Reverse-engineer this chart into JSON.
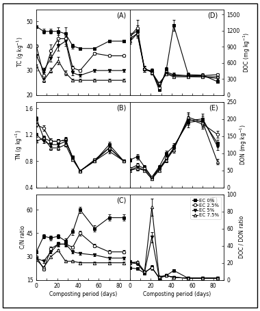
{
  "days": [
    0,
    7,
    14,
    21,
    28,
    35,
    42,
    56,
    70,
    84
  ],
  "TC": {
    "EC0": [
      48,
      46,
      46,
      46,
      45,
      40,
      39,
      39,
      42,
      42
    ],
    "EC2.5": [
      40,
      28,
      38,
      43,
      43,
      31,
      30,
      37,
      36,
      36
    ],
    "EC5": [
      36,
      30,
      35,
      40,
      42,
      29,
      28,
      30,
      30,
      30
    ],
    "EC7.5": [
      32,
      26,
      30,
      34,
      29,
      26,
      26,
      26,
      26,
      26
    ]
  },
  "TC_err": {
    "EC0": [
      0.5,
      1.0,
      1.0,
      1.5,
      2.5,
      1.0,
      0.5,
      0.5,
      0.5,
      0.5
    ],
    "EC2.5": [
      0.5,
      1.5,
      2.5,
      2.0,
      2.0,
      1.0,
      0.5,
      0.5,
      0.5,
      0.5
    ],
    "EC5": [
      0.5,
      1.0,
      1.5,
      2.0,
      2.0,
      1.0,
      0.5,
      0.5,
      0.5,
      0.5
    ],
    "EC7.5": [
      0.5,
      0.8,
      1.0,
      1.5,
      1.0,
      0.5,
      0.5,
      0.5,
      0.5,
      0.5
    ]
  },
  "TN": {
    "EC0": [
      1.45,
      1.15,
      1.1,
      1.1,
      1.12,
      0.85,
      0.65,
      0.8,
      1.05,
      0.8
    ],
    "EC2.5": [
      1.35,
      1.3,
      1.1,
      1.1,
      1.12,
      0.85,
      0.65,
      0.82,
      1.0,
      0.8
    ],
    "EC5": [
      1.2,
      1.1,
      1.05,
      1.05,
      1.1,
      0.85,
      0.65,
      0.8,
      0.95,
      0.8
    ],
    "EC7.5": [
      1.1,
      1.15,
      1.0,
      1.0,
      1.05,
      0.82,
      0.65,
      0.8,
      1.0,
      0.8
    ]
  },
  "TN_err": {
    "EC0": [
      0.03,
      0.04,
      0.04,
      0.03,
      0.05,
      0.03,
      0.02,
      0.02,
      0.04,
      0.02
    ],
    "EC2.5": [
      0.03,
      0.04,
      0.04,
      0.03,
      0.04,
      0.03,
      0.02,
      0.02,
      0.03,
      0.02
    ],
    "EC5": [
      0.03,
      0.03,
      0.03,
      0.03,
      0.04,
      0.03,
      0.02,
      0.02,
      0.03,
      0.02
    ],
    "EC7.5": [
      0.02,
      0.03,
      0.03,
      0.03,
      0.03,
      0.02,
      0.02,
      0.02,
      0.03,
      0.02
    ]
  },
  "CN_days": [
    0,
    7,
    14,
    21,
    28,
    35,
    42,
    56,
    70,
    84
  ],
  "CN": {
    "EC0": [
      33,
      43,
      42,
      43,
      40,
      46,
      60,
      48,
      55,
      55
    ],
    "EC2.5": [
      30,
      22,
      35,
      38,
      38,
      36,
      45,
      37,
      33,
      33
    ],
    "EC5": [
      29,
      27,
      33,
      38,
      38,
      33,
      32,
      31,
      29,
      29
    ],
    "EC7.5": [
      28,
      23,
      30,
      34,
      27,
      27,
      26,
      26,
      26,
      26
    ]
  },
  "CN_err": {
    "EC0": [
      1.0,
      1.5,
      1.5,
      1.5,
      1.5,
      2.0,
      2.0,
      2.0,
      2.0,
      2.0
    ],
    "EC2.5": [
      0.8,
      1.0,
      1.5,
      1.5,
      1.5,
      1.0,
      1.5,
      1.0,
      1.0,
      1.0
    ],
    "EC5": [
      0.8,
      1.0,
      1.0,
      1.0,
      1.0,
      1.0,
      1.0,
      0.8,
      0.8,
      0.8
    ],
    "EC7.5": [
      0.8,
      0.8,
      0.8,
      0.8,
      0.8,
      0.8,
      0.8,
      0.8,
      0.8,
      0.8
    ]
  },
  "DOC_days": [
    0,
    7,
    14,
    21,
    28,
    35,
    42,
    56,
    70,
    84
  ],
  "DOC": {
    "EC0": [
      1100,
      1200,
      480,
      450,
      100,
      480,
      1300,
      380,
      370,
      250
    ],
    "EC2.5": [
      1100,
      1250,
      480,
      430,
      140,
      430,
      380,
      360,
      360,
      380
    ],
    "EC5": [
      1050,
      1150,
      470,
      440,
      180,
      410,
      360,
      350,
      340,
      310
    ],
    "EC7.5": [
      1000,
      1150,
      500,
      420,
      220,
      390,
      340,
      340,
      340,
      340
    ]
  },
  "DOC_err": {
    "EC0": [
      60,
      100,
      50,
      50,
      20,
      40,
      100,
      40,
      40,
      30
    ],
    "EC2.5": [
      60,
      150,
      50,
      40,
      20,
      40,
      40,
      30,
      30,
      30
    ],
    "EC5": [
      50,
      80,
      40,
      40,
      20,
      30,
      30,
      30,
      30,
      25
    ],
    "EC7.5": [
      50,
      80,
      40,
      40,
      20,
      30,
      30,
      30,
      30,
      25
    ]
  },
  "DON_days": [
    0,
    7,
    14,
    21,
    28,
    35,
    42,
    56,
    70,
    84
  ],
  "DON": {
    "EC0": [
      80,
      90,
      60,
      30,
      60,
      100,
      120,
      190,
      195,
      130
    ],
    "EC2.5": [
      55,
      65,
      55,
      30,
      55,
      85,
      115,
      200,
      185,
      155
    ],
    "EC5": [
      50,
      60,
      50,
      25,
      55,
      80,
      115,
      195,
      200,
      120
    ],
    "EC7.5": [
      50,
      55,
      50,
      25,
      50,
      80,
      110,
      205,
      190,
      75
    ]
  },
  "DON_err": {
    "EC0": [
      5,
      8,
      5,
      4,
      6,
      8,
      10,
      15,
      15,
      10
    ],
    "EC2.5": [
      4,
      6,
      5,
      4,
      5,
      8,
      10,
      15,
      14,
      10
    ],
    "EC5": [
      4,
      5,
      4,
      3,
      5,
      7,
      9,
      14,
      15,
      10
    ],
    "EC7.5": [
      4,
      5,
      4,
      3,
      4,
      7,
      9,
      15,
      14,
      8
    ]
  },
  "DOCDON_days": [
    0,
    7,
    14,
    21,
    28,
    35,
    42,
    56,
    70,
    84
  ],
  "DOCDON": {
    "EC0": [
      14,
      13,
      8,
      15,
      2,
      5,
      11,
      2,
      2,
      2
    ],
    "EC2.5": [
      20,
      19,
      9,
      14,
      3,
      5,
      3,
      2,
      2,
      2
    ],
    "EC5": [
      21,
      19,
      9,
      50,
      3,
      5,
      3,
      2,
      2,
      2
    ],
    "EC7.5": [
      20,
      21,
      10,
      85,
      4,
      5,
      3,
      2,
      2,
      2
    ]
  },
  "DOCDON_err": {
    "EC0": [
      1,
      1,
      1,
      2,
      0.3,
      0.5,
      1,
      0.3,
      0.3,
      0.3
    ],
    "EC2.5": [
      1,
      1,
      1,
      2,
      0.3,
      0.5,
      0.3,
      0.3,
      0.3,
      0.3
    ],
    "EC5": [
      1,
      1,
      1,
      6,
      0.3,
      0.5,
      0.3,
      0.3,
      0.3,
      0.3
    ],
    "EC7.5": [
      1,
      1,
      1,
      10,
      0.4,
      0.5,
      0.3,
      0.3,
      0.3,
      0.3
    ]
  },
  "markers": [
    "s",
    "o",
    "v",
    "^"
  ],
  "labels": [
    "EC 0%",
    "EC 2.5%",
    "EC 5%",
    "EC 7.5%"
  ],
  "marker_facecolors": [
    "black",
    "white",
    "black",
    "white"
  ],
  "marker_edgecolors": [
    "black",
    "black",
    "black",
    "black"
  ]
}
